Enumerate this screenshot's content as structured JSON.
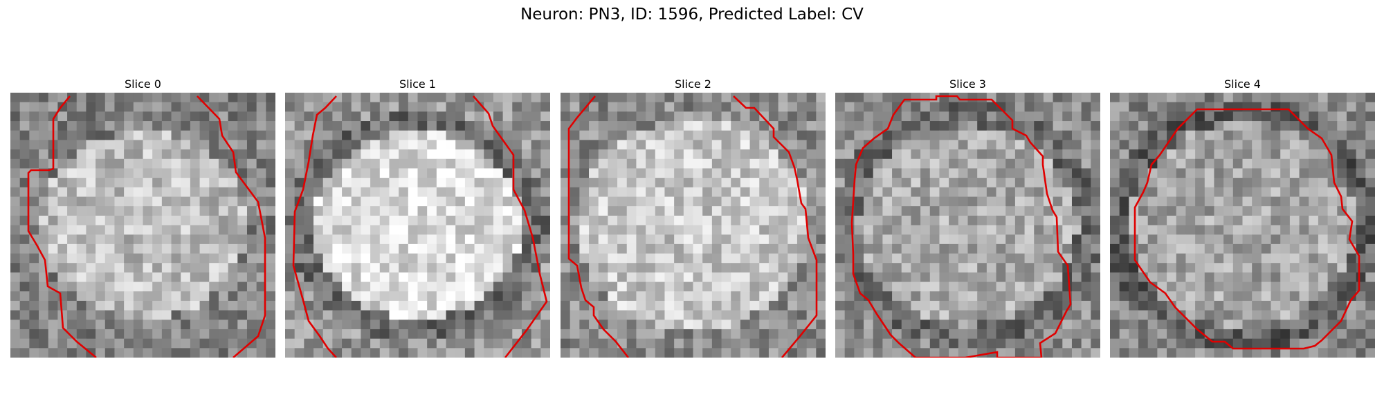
{
  "figure": {
    "title": "Neuron: PN3, ID: 1596, Predicted Label: CV"
  },
  "colors": {
    "contour": "#e00000",
    "background": "#ffffff"
  },
  "slices": [
    {
      "title": "Slice 0"
    },
    {
      "title": "Slice 1"
    },
    {
      "title": "Slice 2"
    },
    {
      "title": "Slice 3"
    },
    {
      "title": "Slice 4"
    }
  ]
}
